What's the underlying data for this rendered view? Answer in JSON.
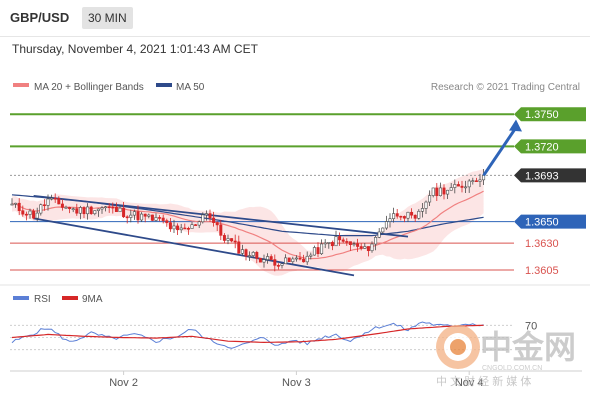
{
  "header": {
    "pair": "GBP/USD",
    "timeframe": "30 MIN",
    "timestamp": "Thursday, November 4, 2021 1:01:43 AM CET"
  },
  "legend": {
    "ma20": "MA 20 + Bollinger Bands",
    "ma50": "MA 50",
    "source": "Research © 2021 Trading Central",
    "rsi": "RSI",
    "rsi_ma": "9MA"
  },
  "levels": [
    {
      "value": 1.375,
      "label": "1.3750",
      "color": "#5aa02c",
      "style": "tag"
    },
    {
      "value": 1.372,
      "label": "1.3720",
      "color": "#5aa02c",
      "style": "tag"
    },
    {
      "value": 1.3693,
      "label": "1.3693",
      "color": "#333333",
      "style": "tag"
    },
    {
      "value": 1.365,
      "label": "1.3650",
      "color": "#2e64b8",
      "style": "tag"
    },
    {
      "value": 1.363,
      "label": "1.3630",
      "color": "#d9534f",
      "style": "text"
    },
    {
      "value": 1.3605,
      "label": "1.3605",
      "color": "#d9534f",
      "style": "text"
    }
  ],
  "rsi_level": "70",
  "x_labels": [
    "Nov 2",
    "Nov 3",
    "Nov 4"
  ],
  "watermark": {
    "name": "中金网",
    "domain": "CNGOLD.COM.CN",
    "tagline": "中 文 财 经 新 媒 体"
  },
  "colors": {
    "bullish": "#4a4a4a",
    "bearish": "#d62728",
    "ma20": "#f08080",
    "ma50": "#2e4a8a",
    "channel": "#2e4a8a",
    "bands_fill": "#fbdcdc",
    "arrow": "#2e64b8",
    "rsi": "#5b7fd6",
    "rsi_ma": "#d62728"
  },
  "chart_data": {
    "type": "line",
    "symbol": "GBP/USD",
    "timeframe": "30 MIN",
    "x_labels": [
      "Nov 2",
      "Nov 3",
      "Nov 4"
    ],
    "price_ylim": [
      1.3591,
      1.3766
    ],
    "close_path": [
      [
        0,
        1.3665
      ],
      [
        6,
        1.3656
      ],
      [
        10,
        1.367
      ],
      [
        18,
        1.366
      ],
      [
        26,
        1.3663
      ],
      [
        34,
        1.3656
      ],
      [
        42,
        1.365
      ],
      [
        46,
        1.364
      ],
      [
        50,
        1.3645
      ],
      [
        54,
        1.366
      ],
      [
        58,
        1.3638
      ],
      [
        64,
        1.3622
      ],
      [
        70,
        1.3615
      ],
      [
        76,
        1.3612
      ],
      [
        82,
        1.3617
      ],
      [
        86,
        1.3626
      ],
      [
        90,
        1.3633
      ],
      [
        94,
        1.3629
      ],
      [
        98,
        1.3623
      ],
      [
        101,
        1.3634
      ],
      [
        104,
        1.3652
      ],
      [
        108,
        1.3659
      ],
      [
        112,
        1.365
      ],
      [
        116,
        1.3676
      ],
      [
        120,
        1.368
      ],
      [
        124,
        1.3681
      ],
      [
        128,
        1.369
      ],
      [
        131,
        1.3693
      ]
    ],
    "ma50_path": [
      [
        0,
        1.3675
      ],
      [
        20,
        1.3669
      ],
      [
        40,
        1.366
      ],
      [
        60,
        1.365
      ],
      [
        75,
        1.3641
      ],
      [
        90,
        1.3637
      ],
      [
        100,
        1.3637
      ],
      [
        110,
        1.3641
      ],
      [
        120,
        1.3648
      ],
      [
        131,
        1.3654
      ]
    ],
    "channel": {
      "upper": [
        [
          6,
          1.3674
        ],
        [
          110,
          1.3636
        ]
      ],
      "lower": [
        [
          6,
          1.3653
        ],
        [
          95,
          1.36
        ]
      ]
    },
    "target_arrow": {
      "from": [
        131,
        1.3693
      ],
      "to": [
        140,
        1.3745
      ]
    },
    "levels": [
      1.375,
      1.372,
      1.3693,
      1.365,
      1.363,
      1.3605
    ],
    "rsi": {
      "ylim": [
        0,
        100
      ],
      "level": 70,
      "rsi_path": [
        [
          0,
          42
        ],
        [
          6,
          57
        ],
        [
          10,
          66
        ],
        [
          16,
          42
        ],
        [
          22,
          57
        ],
        [
          28,
          48
        ],
        [
          34,
          55
        ],
        [
          40,
          44
        ],
        [
          46,
          52
        ],
        [
          50,
          64
        ],
        [
          54,
          48
        ],
        [
          58,
          39
        ],
        [
          62,
          33
        ],
        [
          66,
          42
        ],
        [
          70,
          50
        ],
        [
          74,
          36
        ],
        [
          78,
          46
        ],
        [
          82,
          40
        ],
        [
          86,
          50
        ],
        [
          90,
          55
        ],
        [
          94,
          44
        ],
        [
          98,
          58
        ],
        [
          102,
          68
        ],
        [
          106,
          72
        ],
        [
          110,
          62
        ],
        [
          114,
          76
        ],
        [
          118,
          70
        ],
        [
          122,
          68
        ],
        [
          126,
          73
        ],
        [
          131,
          71
        ]
      ],
      "ma_path": [
        [
          0,
          50
        ],
        [
          10,
          55
        ],
        [
          20,
          52
        ],
        [
          30,
          50
        ],
        [
          40,
          49
        ],
        [
          50,
          52
        ],
        [
          60,
          44
        ],
        [
          70,
          42
        ],
        [
          80,
          43
        ],
        [
          90,
          47
        ],
        [
          100,
          55
        ],
        [
          110,
          64
        ],
        [
          120,
          68
        ],
        [
          131,
          70
        ]
      ]
    }
  }
}
